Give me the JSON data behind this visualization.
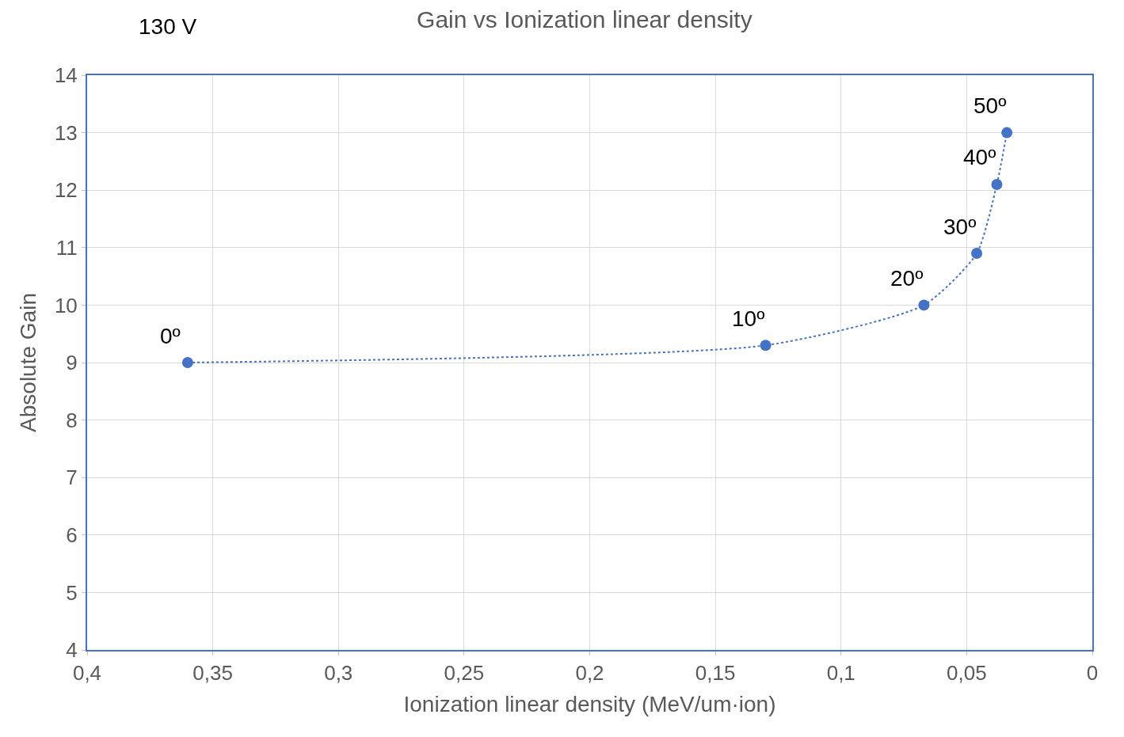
{
  "chart_data": {
    "type": "line",
    "title": "Gain vs Ionization linear density",
    "xlabel": "Ionization linear density (MeV/um·ion)",
    "ylabel": "Absolute Gain",
    "x": [
      0.36,
      0.13,
      0.067,
      0.046,
      0.038,
      0.034
    ],
    "series": [
      {
        "color": "#4472c4",
        "values": [
          9.0,
          9.3,
          10.0,
          10.9,
          12.1,
          13.0
        ]
      }
    ],
    "xlim": [
      0.4,
      0
    ],
    "xticks": [
      {
        "value": 0.4,
        "label": "0,4"
      },
      {
        "value": 0.35,
        "label": "0,35"
      },
      {
        "value": 0.3,
        "label": "0,3"
      },
      {
        "value": 0.25,
        "label": "0,25"
      },
      {
        "value": 0.2,
        "label": "0,2"
      },
      {
        "value": 0.15,
        "label": "0,15"
      },
      {
        "value": 0.1,
        "label": "0,1"
      },
      {
        "value": 0.05,
        "label": "0,05"
      },
      0
    ],
    "ylim": [
      4,
      14
    ],
    "yticks": [
      4,
      5,
      6,
      7,
      8,
      9,
      10,
      11,
      12,
      13,
      14
    ],
    "grid": true,
    "marker": "circle",
    "line_style": "dotted",
    "annotations": [
      "130 V",
      {
        "text": "0º",
        "x": 0.36,
        "y": 9.0
      },
      {
        "text": "10º",
        "x": 0.13,
        "y": 9.3
      },
      {
        "text": "20º",
        "x": 0.067,
        "y": 10.0
      },
      {
        "text": "30º",
        "x": 0.046,
        "y": 10.9
      },
      {
        "text": "40º",
        "x": 0.038,
        "y": 12.1
      },
      {
        "text": "50º",
        "x": 0.034,
        "y": 13.0
      }
    ]
  }
}
